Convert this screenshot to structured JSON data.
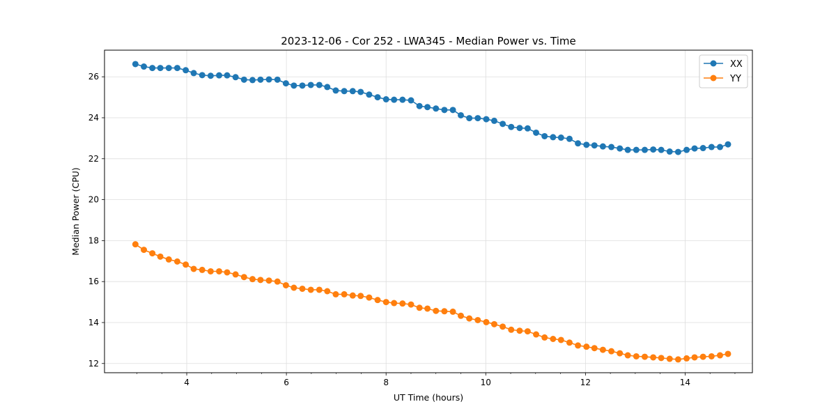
{
  "chart_data": {
    "type": "line",
    "title": "2023-12-06 - Cor 252 - LWA345 - Median Power vs. Time",
    "xlabel": "UT Time (hours)",
    "ylabel": "Median Power (CPU)",
    "xlim": [
      2.35,
      15.35
    ],
    "ylim": [
      11.55,
      27.3
    ],
    "xticks": [
      4,
      6,
      8,
      10,
      12,
      14
    ],
    "yticks": [
      12,
      14,
      16,
      18,
      20,
      22,
      24,
      26
    ],
    "xtick_labels": [
      "4",
      "6",
      "8",
      "10",
      "12",
      "14"
    ],
    "ytick_labels": [
      "12",
      "14",
      "16",
      "18",
      "20",
      "22",
      "24",
      "26"
    ],
    "grid": true,
    "legend_position": "top-right",
    "x": [
      2.97,
      3.14,
      3.31,
      3.47,
      3.64,
      3.81,
      3.98,
      4.14,
      4.31,
      4.48,
      4.65,
      4.81,
      4.98,
      5.15,
      5.32,
      5.48,
      5.65,
      5.82,
      5.99,
      6.15,
      6.32,
      6.49,
      6.66,
      6.82,
      6.99,
      7.16,
      7.33,
      7.49,
      7.66,
      7.83,
      8.0,
      8.16,
      8.33,
      8.5,
      8.67,
      8.83,
      9.0,
      9.17,
      9.34,
      9.5,
      9.67,
      9.84,
      10.01,
      10.17,
      10.34,
      10.51,
      10.68,
      10.84,
      11.01,
      11.18,
      11.35,
      11.51,
      11.68,
      11.85,
      12.02,
      12.18,
      12.35,
      12.52,
      12.69,
      12.85,
      13.02,
      13.19,
      13.36,
      13.52,
      13.69,
      13.86,
      14.03,
      14.19,
      14.36,
      14.53,
      14.7,
      14.86
    ],
    "series": [
      {
        "name": "XX",
        "color": "#1f77b4",
        "values": [
          26.62,
          26.5,
          26.43,
          26.43,
          26.43,
          26.43,
          26.32,
          26.18,
          26.08,
          26.05,
          26.07,
          26.07,
          25.98,
          25.86,
          25.84,
          25.86,
          25.87,
          25.86,
          25.68,
          25.57,
          25.57,
          25.6,
          25.6,
          25.5,
          25.33,
          25.3,
          25.3,
          25.26,
          25.13,
          25.0,
          24.9,
          24.88,
          24.88,
          24.85,
          24.57,
          24.52,
          24.45,
          24.38,
          24.38,
          24.12,
          23.98,
          23.98,
          23.93,
          23.85,
          23.7,
          23.55,
          23.5,
          23.48,
          23.27,
          23.1,
          23.05,
          23.03,
          22.97,
          22.75,
          22.68,
          22.65,
          22.6,
          22.57,
          22.5,
          22.43,
          22.43,
          22.43,
          22.45,
          22.43,
          22.35,
          22.33,
          22.43,
          22.5,
          22.52,
          22.57,
          22.57,
          22.7
        ]
      },
      {
        "name": "YY",
        "color": "#ff7f0e",
        "values": [
          17.82,
          17.55,
          17.38,
          17.22,
          17.08,
          16.98,
          16.83,
          16.62,
          16.57,
          16.5,
          16.5,
          16.45,
          16.35,
          16.22,
          16.12,
          16.08,
          16.05,
          16.0,
          15.82,
          15.7,
          15.65,
          15.6,
          15.6,
          15.53,
          15.38,
          15.38,
          15.32,
          15.3,
          15.22,
          15.1,
          15.0,
          14.95,
          14.93,
          14.88,
          14.72,
          14.68,
          14.57,
          14.55,
          14.53,
          14.33,
          14.2,
          14.12,
          14.02,
          13.92,
          13.8,
          13.65,
          13.6,
          13.57,
          13.42,
          13.27,
          13.2,
          13.15,
          13.02,
          12.88,
          12.82,
          12.75,
          12.67,
          12.6,
          12.5,
          12.4,
          12.35,
          12.33,
          12.3,
          12.27,
          12.23,
          12.2,
          12.25,
          12.3,
          12.33,
          12.35,
          12.4,
          12.47
        ]
      }
    ]
  }
}
